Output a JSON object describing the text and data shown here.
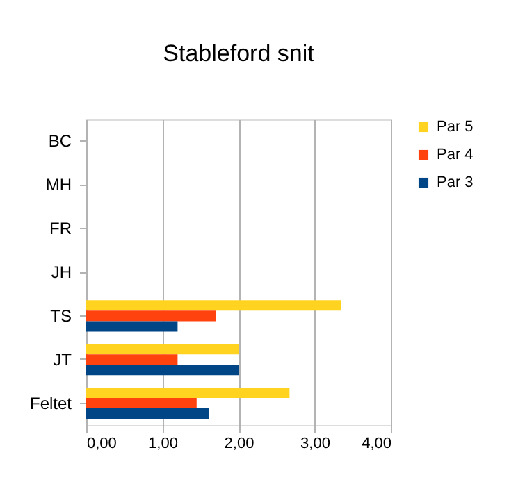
{
  "chart_data": {
    "type": "bar",
    "orientation": "horizontal",
    "title": "Stableford snit",
    "categories": [
      "BC",
      "MH",
      "FR",
      "JH",
      "TS",
      "JT",
      "Feltet"
    ],
    "series": [
      {
        "name": "Par 5",
        "color": "#ffd320",
        "values": [
          null,
          null,
          null,
          null,
          3.35,
          2.0,
          2.67
        ]
      },
      {
        "name": "Par 4",
        "color": "#ff420e",
        "values": [
          null,
          null,
          null,
          null,
          1.7,
          1.2,
          1.45
        ]
      },
      {
        "name": "Par 3",
        "color": "#004586",
        "values": [
          null,
          null,
          null,
          null,
          1.2,
          2.0,
          1.61
        ]
      }
    ],
    "xlim": [
      0,
      4
    ],
    "xticks": [
      {
        "value": 0,
        "label": "0,00"
      },
      {
        "value": 1,
        "label": "1,00"
      },
      {
        "value": 2,
        "label": "2,00"
      },
      {
        "value": 3,
        "label": "3,00"
      },
      {
        "value": 4,
        "label": "4,00"
      }
    ],
    "grid": "x",
    "legend": "right"
  }
}
